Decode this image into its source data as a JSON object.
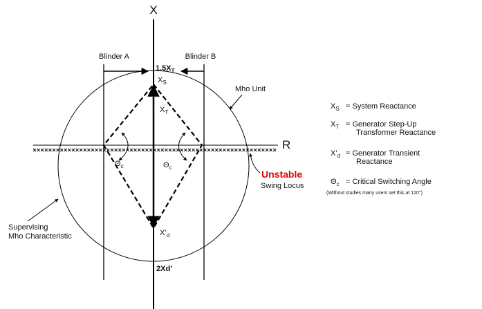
{
  "axes": {
    "x": "X",
    "r": "R"
  },
  "blinders": [
    "Blinder A",
    "Blinder B"
  ],
  "top_label": {
    "main": "1.5X",
    "sub": "T"
  },
  "bottom_label": "2Xd’",
  "points": {
    "xs": {
      "main": "X",
      "sub": "S"
    },
    "xt": {
      "main": "X",
      "sub": "T"
    },
    "xd": {
      "main": "X’",
      "sub": "d"
    }
  },
  "angles": [
    {
      "main": "Θ",
      "sub": "c"
    },
    {
      "main": "Θ",
      "sub": "c"
    }
  ],
  "mho_unit": "Mho Unit",
  "supervising": [
    "Supervising",
    "Mho Characteristic"
  ],
  "unstable": "Unstable",
  "swing_locus": "Swing Locus",
  "legend": [
    {
      "main": "X",
      "sub": "S",
      "text": [
        "=  System Reactance"
      ]
    },
    {
      "main": "X",
      "sub": "T",
      "text": [
        "=  Generator Step-Up",
        "Transformer Reactance"
      ]
    },
    {
      "main": "X’",
      "sub": "d",
      "text": [
        "=  Generator Transient",
        "Reactance"
      ]
    },
    {
      "main": "Θ",
      "sub": "c",
      "text": [
        "=  Critical Switching Angle"
      ]
    }
  ],
  "note": "(Without studies many users set this at 120°)"
}
